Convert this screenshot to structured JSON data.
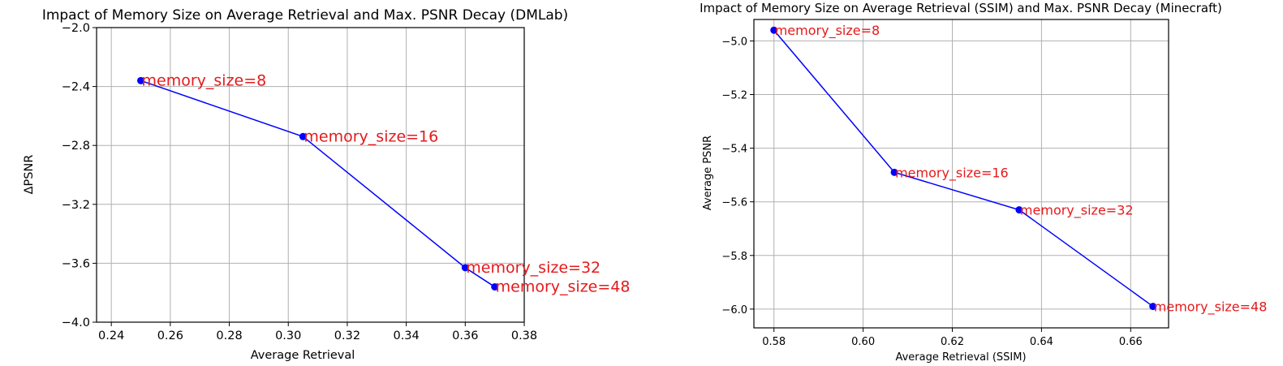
{
  "chart_data": [
    {
      "type": "line",
      "title": "Impact of Memory Size on Average Retrieval and Max. PSNR Decay (DMLab)",
      "xlabel": "Average Retrieval",
      "ylabel": "ΔPSNR",
      "xlim": [
        0.235,
        0.38
      ],
      "ylim": [
        -4.0,
        -2.0
      ],
      "xticks": [
        "0.24",
        "0.26",
        "0.28",
        "0.30",
        "0.32",
        "0.34",
        "0.36",
        "0.38"
      ],
      "yticks": [
        "−2.0",
        "−2.4",
        "−2.8",
        "−3.2",
        "−3.6",
        "−4.0"
      ],
      "grid": true,
      "legend": null,
      "series": [
        {
          "name": "memory_size",
          "color": "#0000ff",
          "marker": "circle",
          "points": [
            {
              "x": 0.25,
              "y": -2.36,
              "label": "memory_size=8"
            },
            {
              "x": 0.305,
              "y": -2.74,
              "label": "memory_size=16"
            },
            {
              "x": 0.36,
              "y": -3.63,
              "label": "memory_size=32"
            },
            {
              "x": 0.37,
              "y": -3.76,
              "label": "memory_size=48"
            }
          ]
        }
      ],
      "annotation_color": "#e41a1c"
    },
    {
      "type": "line",
      "title": "Impact of Memory Size on Average Retrieval (SSIM) and Max. PSNR Decay (Minecraft)",
      "xlabel": "Average Retrieval (SSIM)",
      "ylabel": "Average PSNR",
      "xlim": [
        0.5755,
        0.6685
      ],
      "ylim": [
        -6.07,
        -4.92
      ],
      "xticks": [
        "0.58",
        "0.60",
        "0.62",
        "0.64",
        "0.66"
      ],
      "yticks": [
        "−5.0",
        "−5.2",
        "−5.4",
        "−5.6",
        "−5.8",
        "−6.0"
      ],
      "grid": true,
      "legend": null,
      "series": [
        {
          "name": "memory_size",
          "color": "#0000ff",
          "marker": "circle",
          "points": [
            {
              "x": 0.58,
              "y": -4.96,
              "label": "memory_size=8"
            },
            {
              "x": 0.607,
              "y": -5.49,
              "label": "memory_size=16"
            },
            {
              "x": 0.635,
              "y": -5.63,
              "label": "memory_size=32"
            },
            {
              "x": 0.665,
              "y": -5.99,
              "label": "memory_size=48"
            }
          ]
        }
      ],
      "annotation_color": "#e41a1c"
    }
  ]
}
